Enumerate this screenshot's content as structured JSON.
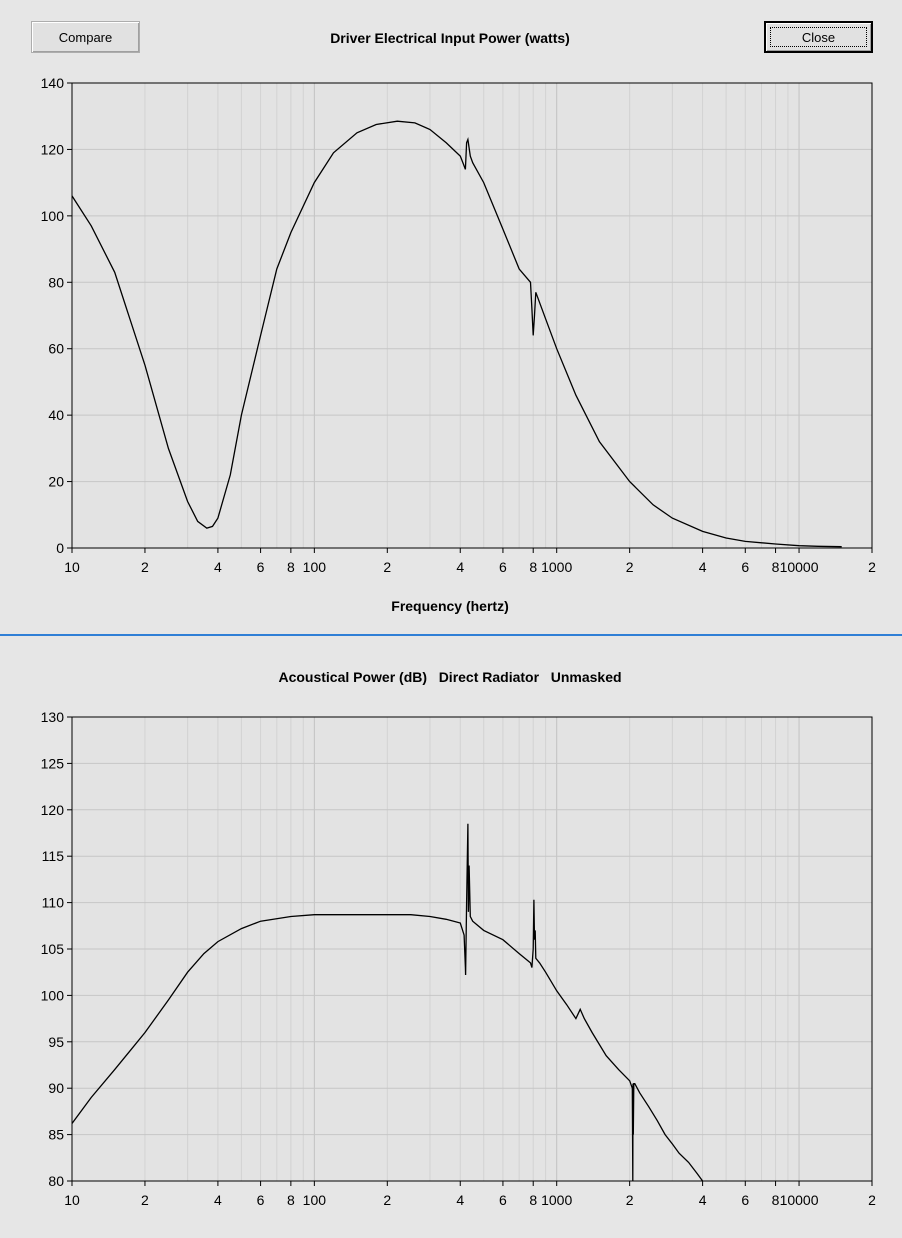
{
  "buttons": {
    "compare_label": "Compare",
    "close_label": "Close"
  },
  "chart_data": [
    {
      "type": "line",
      "title": "Driver Electrical Input Power (watts)",
      "xlabel": "Frequency (hertz)",
      "ylabel": "",
      "x_scale": "log",
      "xlim": [
        10,
        20000
      ],
      "ylim": [
        0,
        140
      ],
      "grid": true,
      "y_ticks": [
        0,
        20,
        40,
        60,
        80,
        100,
        120,
        140
      ],
      "x_tick_labels": [
        "10",
        "2",
        "4",
        "6",
        "8",
        "100",
        "2",
        "4",
        "6",
        "8",
        "1000",
        "2",
        "4",
        "6",
        "8",
        "10000",
        "2"
      ],
      "series": [
        {
          "name": "",
          "x": [
            10,
            12,
            15,
            20,
            25,
            30,
            33,
            36,
            38,
            40,
            45,
            50,
            60,
            70,
            80,
            100,
            120,
            150,
            180,
            220,
            260,
            300,
            350,
            400,
            410,
            420,
            425,
            430,
            440,
            450,
            500,
            600,
            700,
            780,
            790,
            800,
            810,
            820,
            900,
            1000,
            1200,
            1500,
            2000,
            2500,
            3000,
            4000,
            5000,
            6000,
            8000,
            10000,
            12000,
            15000
          ],
          "y": [
            106,
            97,
            83,
            55,
            30,
            14,
            8,
            6,
            6.5,
            9,
            22,
            40,
            64,
            84,
            95,
            110,
            119,
            125,
            127.5,
            128.5,
            128,
            126,
            122,
            118,
            116,
            114,
            122,
            123,
            118,
            116,
            110,
            96,
            84,
            80,
            72,
            64,
            70,
            77,
            69,
            60,
            46,
            32,
            20,
            13,
            9,
            5,
            3,
            2,
            1.2,
            0.7,
            0.5,
            0.4
          ]
        }
      ]
    },
    {
      "type": "line",
      "title": "Acoustical Power (dB)   Direct Radiator   Unmasked",
      "xlabel": "",
      "ylabel": "",
      "x_scale": "log",
      "xlim": [
        10,
        20000
      ],
      "ylim": [
        80,
        130
      ],
      "grid": true,
      "y_ticks": [
        80,
        85,
        90,
        95,
        100,
        105,
        110,
        115,
        120,
        125,
        130
      ],
      "x_tick_labels": [
        "10",
        "2",
        "4",
        "6",
        "8",
        "100",
        "2",
        "4",
        "6",
        "8",
        "1000",
        "2",
        "4",
        "6",
        "8",
        "10000",
        "2"
      ],
      "series": [
        {
          "name": "",
          "x": [
            10,
            12,
            15,
            20,
            25,
            30,
            35,
            40,
            50,
            60,
            80,
            100,
            150,
            200,
            250,
            300,
            350,
            400,
            415,
            420,
            421,
            425,
            430,
            432,
            435,
            440,
            450,
            500,
            600,
            700,
            780,
            790,
            800,
            805,
            810,
            815,
            820,
            850,
            900,
            1000,
            1100,
            1200,
            1250,
            1300,
            1400,
            1600,
            1800,
            2000,
            2050,
            2060,
            2065,
            2070,
            2080,
            2100,
            2200,
            2400,
            2600,
            2800,
            3000,
            3200,
            3500,
            3800,
            4000
          ],
          "y": [
            86.2,
            89,
            92,
            96,
            99.5,
            102.5,
            104.5,
            105.8,
            107.2,
            108,
            108.5,
            108.7,
            108.7,
            108.7,
            108.7,
            108.5,
            108.2,
            107.8,
            106.5,
            103,
            102.2,
            110,
            118.5,
            109,
            114,
            108.5,
            108,
            107,
            106,
            104.5,
            103.5,
            103,
            105,
            110.3,
            106,
            107,
            104,
            103.5,
            102.5,
            100.5,
            99,
            97.5,
            98.5,
            97.5,
            96,
            93.5,
            92,
            90.8,
            90,
            80,
            90.5,
            85,
            90.5,
            90.5,
            89.5,
            88,
            86.5,
            85,
            84,
            83,
            82,
            80.8,
            80
          ]
        }
      ]
    }
  ]
}
